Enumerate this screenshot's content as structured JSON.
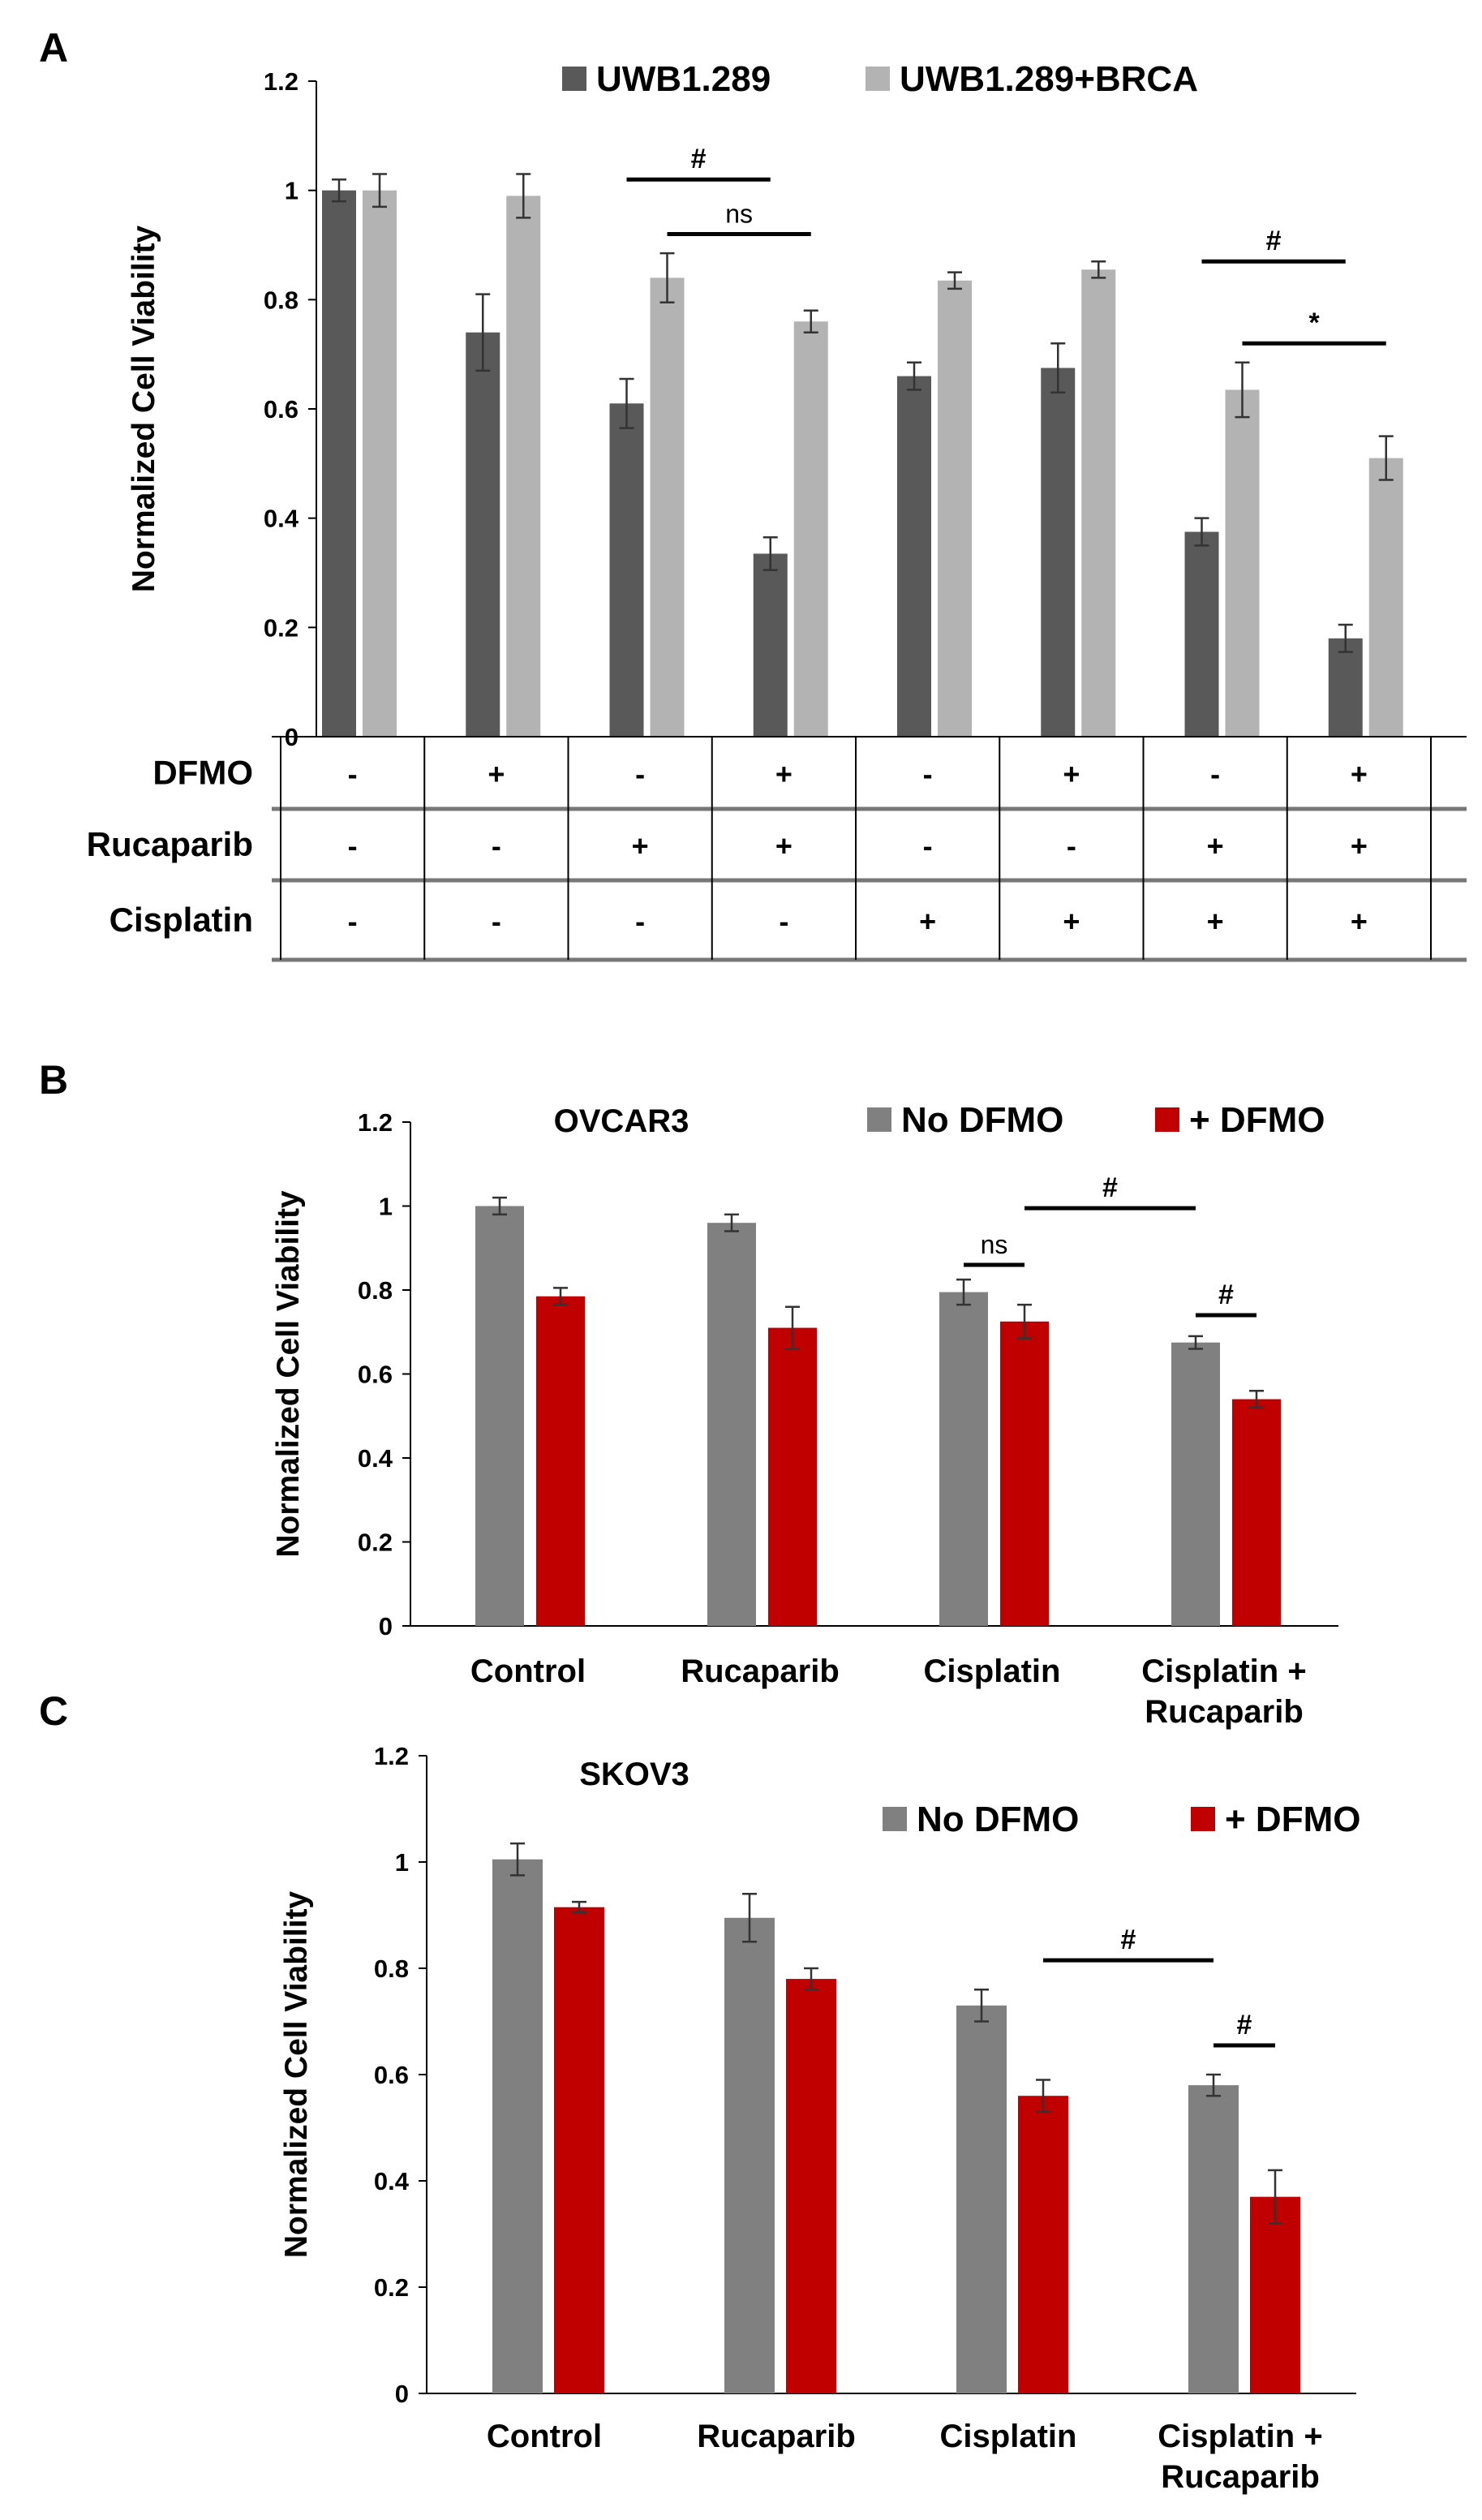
{
  "chart_data": [
    {
      "panel": "A",
      "type": "bar",
      "title": "",
      "ylabel": "Normalized Cell Viability",
      "ylim": [
        0,
        1.2
      ],
      "yticks": [
        "0",
        "0.2",
        "0.4",
        "0.6",
        "0.8",
        "1",
        "1.2"
      ],
      "legend_position": "top-right",
      "series": [
        {
          "name": "UWB1.289",
          "color": "#595959",
          "values": [
            1.0,
            0.74,
            0.61,
            0.335,
            0.66,
            0.675,
            0.375,
            0.18
          ],
          "errors": [
            0.02,
            0.07,
            0.045,
            0.03,
            0.025,
            0.045,
            0.025,
            0.025
          ]
        },
        {
          "name": "UWB1.289+BRCA",
          "color": "#b3b3b3",
          "values": [
            1.0,
            0.99,
            0.84,
            0.76,
            0.835,
            0.855,
            0.635,
            0.51
          ],
          "errors": [
            0.03,
            0.04,
            0.045,
            0.02,
            0.015,
            0.015,
            0.05,
            0.04
          ]
        }
      ],
      "treatment_table": [
        {
          "label": "DFMO",
          "signs": [
            "-",
            "+",
            "-",
            "+",
            "-",
            "+",
            "-",
            "+"
          ]
        },
        {
          "label": "Rucaparib",
          "signs": [
            "-",
            "-",
            "+",
            "+",
            "-",
            "-",
            "+",
            "+"
          ]
        },
        {
          "label": "Cisplatin",
          "signs": [
            "-",
            "-",
            "-",
            "-",
            "+",
            "+",
            "+",
            "+"
          ]
        }
      ],
      "annotations": [
        {
          "text": "#",
          "from": [
            2,
            0
          ],
          "to": [
            3,
            0
          ],
          "y": 1.02
        },
        {
          "text": "ns",
          "from": [
            2,
            1
          ],
          "to": [
            3,
            1
          ],
          "y": 0.92
        },
        {
          "text": "#",
          "from": [
            6,
            0
          ],
          "to": [
            7,
            0
          ],
          "y": 0.87
        },
        {
          "text": "*",
          "from": [
            6,
            1
          ],
          "to": [
            7,
            1
          ],
          "y": 0.72
        }
      ]
    },
    {
      "panel": "B",
      "type": "bar",
      "title": "OVCAR3",
      "ylabel": "Normalized Cell Viability",
      "ylim": [
        0,
        1.2
      ],
      "yticks": [
        "0",
        "0.2",
        "0.4",
        "0.6",
        "0.8",
        "1",
        "1.2"
      ],
      "legend_position": "top-right",
      "categories": [
        "Control",
        "Rucaparib",
        "Cisplatin",
        "Cisplatin +\nRucaparib"
      ],
      "series": [
        {
          "name": "No DFMO",
          "color": "#808080",
          "values": [
            1.0,
            0.96,
            0.795,
            0.675
          ],
          "errors": [
            0.02,
            0.02,
            0.03,
            0.015
          ]
        },
        {
          "name": "+ DFMO",
          "color": "#c00000",
          "values": [
            0.785,
            0.71,
            0.725,
            0.54
          ],
          "errors": [
            0.02,
            0.05,
            0.04,
            0.02
          ]
        }
      ],
      "annotations": [
        {
          "text": "ns",
          "from": [
            2,
            0
          ],
          "to": [
            2,
            1
          ],
          "y": 0.86
        },
        {
          "text": "#",
          "from": [
            2,
            1
          ],
          "to": [
            3,
            0
          ],
          "y": 0.995
        },
        {
          "text": "#",
          "from": [
            3,
            0
          ],
          "to": [
            3,
            1
          ],
          "y": 0.74
        }
      ]
    },
    {
      "panel": "C",
      "type": "bar",
      "title": "SKOV3",
      "ylabel": "Normalized Cell Viability",
      "ylim": [
        0,
        1.2
      ],
      "yticks": [
        "0",
        "0.2",
        "0.4",
        "0.6",
        "0.8",
        "1",
        "1.2"
      ],
      "legend_position": "top-right",
      "categories": [
        "Control",
        "Rucaparib",
        "Cisplatin",
        "Cisplatin +\nRucaparib"
      ],
      "series": [
        {
          "name": "No DFMO",
          "color": "#808080",
          "values": [
            1.005,
            0.895,
            0.73,
            0.58
          ],
          "errors": [
            0.03,
            0.045,
            0.03,
            0.02
          ]
        },
        {
          "name": "+ DFMO",
          "color": "#c00000",
          "values": [
            0.915,
            0.78,
            0.56,
            0.37
          ],
          "errors": [
            0.01,
            0.02,
            0.03,
            0.05
          ]
        }
      ],
      "annotations": [
        {
          "text": "#",
          "from": [
            2,
            1
          ],
          "to": [
            3,
            0
          ],
          "y": 0.815
        },
        {
          "text": "#",
          "from": [
            3,
            0
          ],
          "to": [
            3,
            1
          ],
          "y": 0.655
        }
      ]
    }
  ]
}
